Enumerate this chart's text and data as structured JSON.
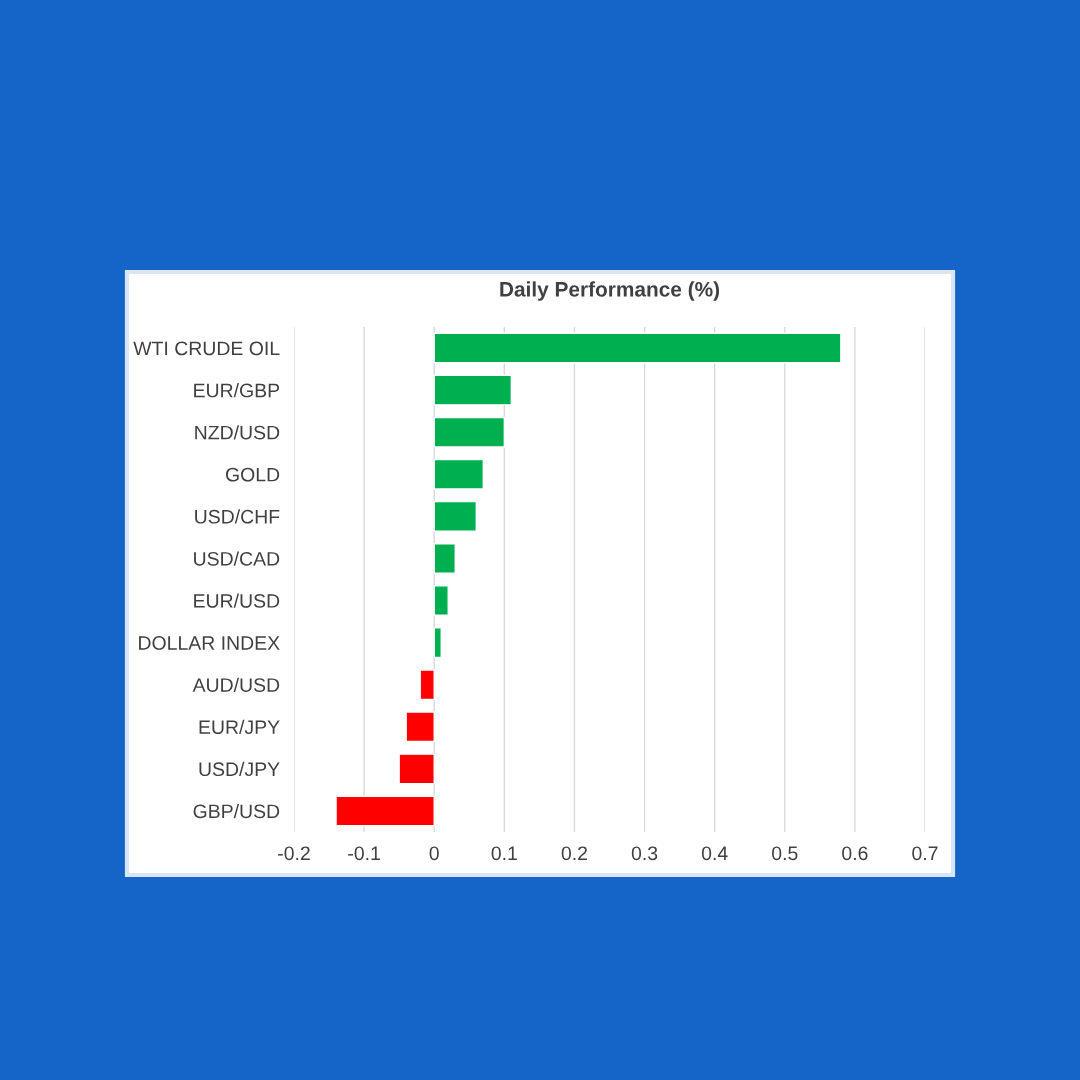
{
  "chart_data": {
    "type": "bar",
    "title": "Daily Performance (%)",
    "orientation": "horizontal",
    "categories": [
      "WTI CRUDE OIL",
      "EUR/GBP",
      "NZD/USD",
      "GOLD",
      "USD/CHF",
      "USD/CAD",
      "EUR/USD",
      "DOLLAR INDEX",
      "AUD/USD",
      "EUR/JPY",
      "USD/JPY",
      "GBP/USD"
    ],
    "values": [
      0.58,
      0.11,
      0.1,
      0.07,
      0.06,
      0.03,
      0.02,
      0.01,
      -0.02,
      -0.04,
      -0.05,
      -0.14
    ],
    "colors": [
      "#00b050",
      "#00b050",
      "#00b050",
      "#00b050",
      "#00b050",
      "#00b050",
      "#00b050",
      "#00b050",
      "#ff0000",
      "#ff0000",
      "#ff0000",
      "#ff0000"
    ],
    "xlim": [
      -0.2,
      0.7
    ],
    "xticks": [
      -0.2,
      -0.1,
      0,
      0.1,
      0.2,
      0.3,
      0.4,
      0.5,
      0.6,
      0.7
    ],
    "grid": "x"
  }
}
